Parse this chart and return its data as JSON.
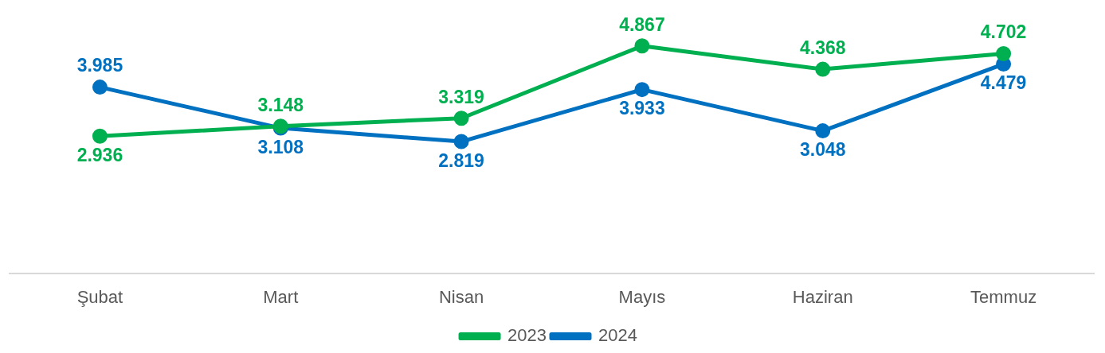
{
  "chart_data": {
    "type": "line",
    "categories": [
      "Şubat",
      "Mart",
      "Nisan",
      "Mayıs",
      "Haziran",
      "Temmuz"
    ],
    "series": [
      {
        "name": "2023",
        "color": "#00b050",
        "values": [
          2.936,
          3.148,
          3.319,
          4.867,
          4.368,
          4.702
        ]
      },
      {
        "name": "2024",
        "color": "#0070c0",
        "values": [
          3.985,
          3.108,
          2.819,
          3.933,
          3.048,
          4.479
        ]
      }
    ],
    "data_labels": true,
    "legend": "bottom",
    "grid": false,
    "marker": "circle",
    "line_style": "solid",
    "tick_labels": "x"
  }
}
